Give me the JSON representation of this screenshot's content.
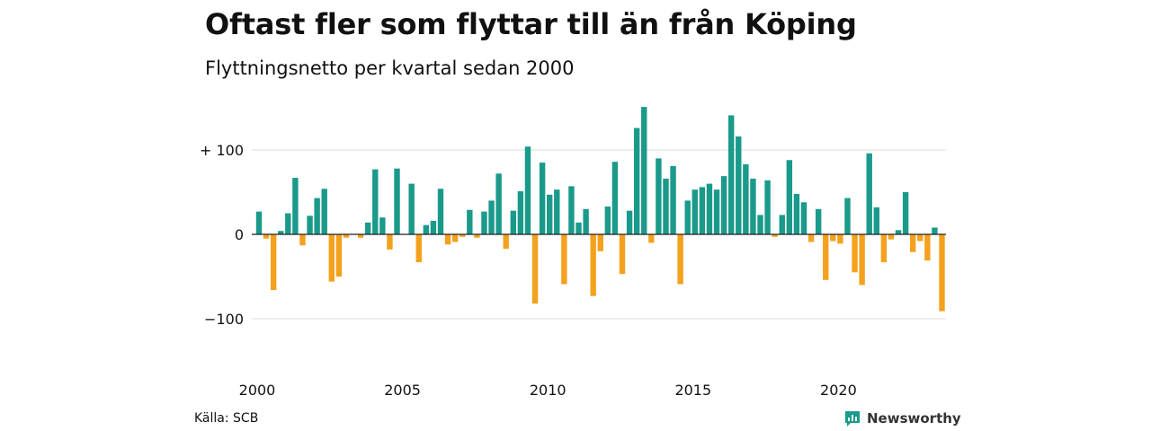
{
  "title": "Oftast fler som flyttar till än från Köping",
  "subtitle": "Flyttningsnetto per kvartal sedan 2000",
  "source": "Källa: SCB",
  "brand": {
    "name": "Newsworthy",
    "icon": "newsworthy-logo-icon"
  },
  "colors": {
    "positive": "#1a9a8b",
    "negative": "#f4a11d",
    "grid": "#dddddd",
    "zero": "#222222",
    "brand": "#1a9a8b"
  },
  "chart_data": {
    "type": "bar",
    "x_start": "2000 Q1",
    "values": [
      27,
      -5,
      -66,
      4,
      25,
      67,
      -13,
      22,
      43,
      54,
      -56,
      -50,
      -4,
      0,
      -4,
      14,
      77,
      20,
      -18,
      78,
      0,
      60,
      -33,
      11,
      16,
      54,
      -12,
      -9,
      -3,
      29,
      -4,
      27,
      40,
      72,
      -17,
      28,
      51,
      104,
      -82,
      85,
      47,
      53,
      -59,
      57,
      14,
      30,
      -73,
      -20,
      33,
      86,
      -47,
      28,
      126,
      151,
      -10,
      90,
      66,
      81,
      -59,
      40,
      53,
      56,
      60,
      53,
      69,
      141,
      116,
      83,
      66,
      23,
      64,
      -3,
      23,
      88,
      48,
      38,
      -9,
      30,
      -54,
      -8,
      -11,
      43,
      -45,
      -60,
      96,
      32,
      -33,
      -6,
      5,
      50,
      -21,
      -8,
      -31,
      8,
      -91
    ],
    "xtick_labels": [
      "2000",
      "2005",
      "2010",
      "2015",
      "2020"
    ],
    "ytick_labels": [
      "+ 100",
      "0",
      "−100"
    ],
    "yticks": [
      100,
      0,
      -100
    ],
    "ylim": [
      -140,
      160
    ],
    "grid": true,
    "xlabel": "",
    "ylabel": ""
  }
}
